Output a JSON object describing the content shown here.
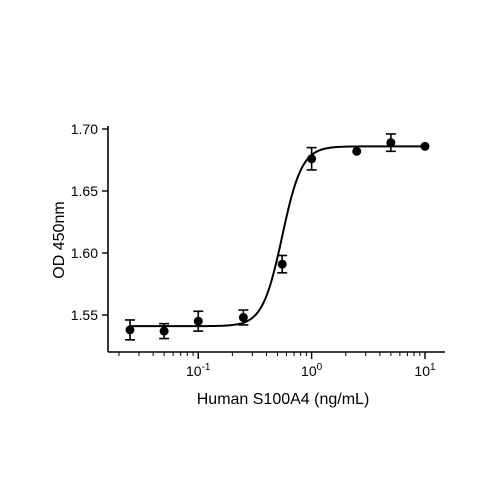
{
  "chart_data": {
    "type": "scatter",
    "title": "",
    "xlabel": "Human S100A4 (ng/mL)",
    "ylabel": "OD 450nm",
    "xscale": "log",
    "xlim": [
      0.02,
      15
    ],
    "ylim": [
      1.52,
      1.7
    ],
    "yticks": [
      1.55,
      1.6,
      1.65,
      1.7
    ],
    "ytick_labels": [
      "1.55",
      "1.60",
      "1.65",
      "1.70"
    ],
    "xticks": [
      {
        "value": 0.1,
        "base": "10",
        "exp": "-1"
      },
      {
        "value": 1,
        "base": "10",
        "exp": "0"
      },
      {
        "value": 10,
        "base": "10",
        "exp": "1"
      }
    ],
    "grid": false,
    "legend": "none",
    "series": [
      {
        "x": [
          0.025,
          0.05,
          0.1,
          0.25,
          0.55,
          1.0,
          2.5,
          5.0,
          10.0
        ],
        "y": [
          1.538,
          1.537,
          1.545,
          1.548,
          1.591,
          1.676,
          1.682,
          1.689,
          1.686
        ],
        "yerr": [
          0.008,
          0.006,
          0.008,
          0.006,
          0.007,
          0.009,
          0.0,
          0.007,
          0.0
        ]
      }
    ],
    "fit": {
      "model": "4PL",
      "bottom": 1.541,
      "top": 1.686,
      "ec50": 0.55,
      "hill": 5
    }
  }
}
